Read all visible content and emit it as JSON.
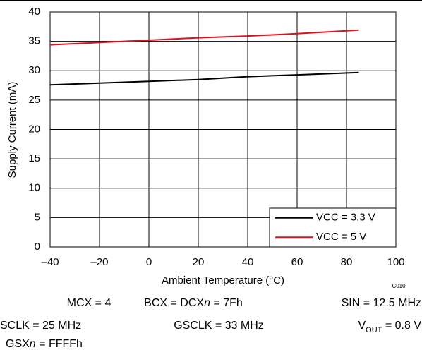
{
  "chart_data": {
    "type": "line",
    "x_label": "Ambient Temperature (°C)",
    "y_label": "Supply Current (mA)",
    "annotation": "C010",
    "x": [
      -40,
      -20,
      0,
      20,
      40,
      60,
      85
    ],
    "series": [
      {
        "name": "VCC = 3.3 V",
        "color": "#000000",
        "values": [
          27.6,
          27.9,
          28.2,
          28.5,
          29.0,
          29.3,
          29.7
        ]
      },
      {
        "name": "VCC = 5 V",
        "color": "#e0101a",
        "values": [
          34.4,
          34.8,
          35.2,
          35.6,
          35.9,
          36.3,
          36.9
        ]
      }
    ],
    "xlim": [
      -40,
      100
    ],
    "xticks": [
      {
        "value": -40,
        "label": "–40"
      },
      {
        "value": -20,
        "label": "–20"
      },
      0,
      20,
      40,
      60,
      80,
      100
    ],
    "ylim": [
      0,
      40
    ],
    "yticks": [
      0,
      5,
      10,
      15,
      20,
      25,
      30,
      35,
      40
    ],
    "grid": true,
    "legend": "lower right",
    "notes": [
      [
        "MCX = 4"
      ],
      [
        "BCX = DCX",
        "n",
        " = 7Fh"
      ],
      [
        "SIN = 12.5 MHz"
      ],
      [
        "SCLK = 25 MHz"
      ],
      [
        "GSCLK = 33 MHz"
      ],
      [
        "V",
        "OUT",
        " = 0.8 V"
      ],
      [
        "GSX",
        "n",
        " = FFFFh"
      ]
    ]
  }
}
